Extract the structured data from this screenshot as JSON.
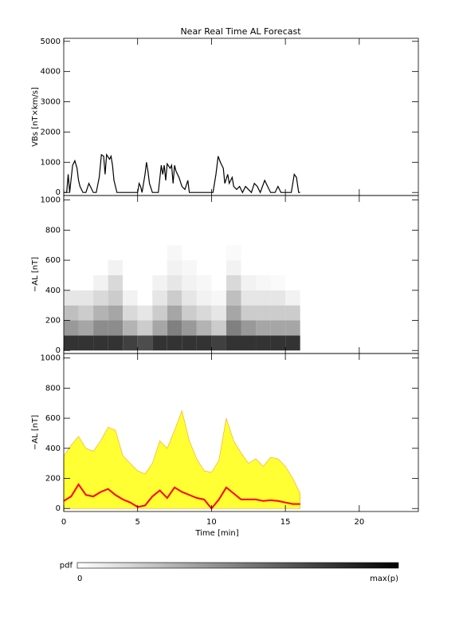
{
  "chart_data": [
    {
      "type": "line",
      "title": "Near Real Time AL Forecast",
      "ylabel": "VBs [nT×km/s]",
      "xlim": [
        0,
        24
      ],
      "xticks": [
        0,
        5,
        10,
        15,
        20
      ],
      "ylim": [
        -100,
        5100
      ],
      "yticks": [
        0,
        1000,
        2000,
        3000,
        4000,
        5000
      ],
      "series": [
        {
          "color": "#000000",
          "style": "line",
          "x": [
            0,
            0.2,
            0.3,
            0.4,
            0.6,
            0.75,
            0.9,
            1.0,
            1.1,
            1.3,
            1.5,
            1.7,
            1.8,
            2.0,
            2.2,
            2.4,
            2.55,
            2.7,
            2.8,
            2.9,
            3.1,
            3.2,
            3.3,
            3.4,
            3.5,
            3.6,
            5.0,
            5.1,
            5.2,
            5.3,
            5.5,
            5.6,
            5.7,
            5.8,
            6.0,
            6.4,
            6.6,
            6.7,
            6.8,
            6.9,
            7.0,
            7.2,
            7.3,
            7.4,
            7.5,
            7.6,
            7.8,
            8.0,
            8.2,
            8.4,
            8.5,
            10.1,
            10.3,
            10.45,
            10.6,
            10.8,
            10.9,
            11.1,
            11.2,
            11.4,
            11.5,
            11.7,
            11.9,
            12.1,
            12.3,
            12.5,
            12.7,
            12.9,
            13.1,
            13.3,
            13.6,
            13.8,
            14.0,
            14.3,
            14.5,
            14.7,
            15.4,
            15.6,
            15.75,
            15.9,
            16
          ],
          "values": [
            0,
            0,
            600,
            0,
            900,
            1050,
            800,
            400,
            200,
            0,
            0,
            300,
            200,
            0,
            0,
            500,
            1250,
            1200,
            600,
            1250,
            1100,
            1200,
            900,
            400,
            200,
            0,
            0,
            300,
            200,
            0,
            600,
            1000,
            700,
            300,
            0,
            0,
            900,
            600,
            900,
            400,
            950,
            800,
            900,
            300,
            900,
            700,
            500,
            200,
            100,
            400,
            0,
            0,
            600,
            1200,
            1000,
            800,
            300,
            600,
            300,
            500,
            200,
            100,
            200,
            0,
            200,
            100,
            0,
            300,
            200,
            0,
            400,
            200,
            0,
            0,
            200,
            0,
            0,
            600,
            500,
            0,
            0
          ]
        }
      ]
    },
    {
      "type": "heatmap",
      "ylabel": "−AL [nT]",
      "xlim": [
        0,
        24
      ],
      "xticks": [
        0,
        5,
        10,
        15,
        20
      ],
      "ylim": [
        -20,
        1030
      ],
      "yticks": [
        0,
        200,
        400,
        600,
        800,
        1000
      ],
      "x_bins": [
        0,
        1,
        2,
        3,
        4,
        5,
        6,
        7,
        8,
        9,
        10,
        11,
        12,
        13,
        14,
        15,
        16
      ],
      "y_bins": [
        0,
        100,
        200,
        300,
        400,
        500,
        600,
        700
      ],
      "z": [
        [
          0.8,
          0.4,
          0.25,
          0.1,
          0,
          0,
          0
        ],
        [
          0.8,
          0.35,
          0.2,
          0.1,
          0,
          0,
          0
        ],
        [
          0.8,
          0.45,
          0.3,
          0.15,
          0.05,
          0,
          0
        ],
        [
          0.8,
          0.45,
          0.35,
          0.2,
          0.15,
          0.05,
          0
        ],
        [
          0.75,
          0.3,
          0.15,
          0.05,
          0,
          0,
          0
        ],
        [
          0.7,
          0.2,
          0.1,
          0,
          0,
          0,
          0
        ],
        [
          0.8,
          0.35,
          0.2,
          0.1,
          0.05,
          0,
          0
        ],
        [
          0.8,
          0.5,
          0.35,
          0.2,
          0.1,
          0.05,
          0.03
        ],
        [
          0.8,
          0.4,
          0.2,
          0.1,
          0.05,
          0.03,
          0
        ],
        [
          0.8,
          0.3,
          0.15,
          0.05,
          0.03,
          0,
          0
        ],
        [
          0.75,
          0.2,
          0.1,
          0.03,
          0,
          0,
          0
        ],
        [
          0.8,
          0.5,
          0.35,
          0.25,
          0.15,
          0.05,
          0.02
        ],
        [
          0.8,
          0.4,
          0.2,
          0.1,
          0.05,
          0,
          0
        ],
        [
          0.8,
          0.35,
          0.2,
          0.1,
          0.03,
          0,
          0
        ],
        [
          0.8,
          0.35,
          0.2,
          0.1,
          0.02,
          0,
          0
        ],
        [
          0.8,
          0.35,
          0.2,
          0.05,
          0,
          0,
          0
        ]
      ],
      "colorbar": {
        "label": "pdf",
        "zlim": [
          0,
          1
        ],
        "ticks": [
          0,
          {
            "value": 1,
            "label": "max(p)"
          }
        ]
      }
    },
    {
      "type": "line",
      "ylabel": "−AL [nT]",
      "xlabel": "Time [min]",
      "xlim": [
        0,
        24
      ],
      "xticks": [
        0,
        5,
        10,
        15,
        20
      ],
      "ylim": [
        -20,
        1030
      ],
      "yticks": [
        0,
        200,
        400,
        600,
        800,
        1000
      ],
      "series": [
        {
          "color": "#ffff33",
          "style": "area",
          "x": [
            0,
            0.5,
            1,
            1.5,
            2,
            2.5,
            3,
            3.5,
            4,
            4.5,
            5,
            5.5,
            6,
            6.5,
            7,
            7.5,
            8,
            8.5,
            9,
            9.5,
            10,
            10.5,
            11,
            11.5,
            12,
            12.5,
            13,
            13.5,
            14,
            14.5,
            15,
            15.5,
            16
          ],
          "values": [
            350,
            420,
            480,
            400,
            380,
            450,
            540,
            520,
            350,
            300,
            250,
            230,
            300,
            450,
            400,
            520,
            650,
            450,
            330,
            250,
            240,
            320,
            600,
            450,
            370,
            300,
            330,
            280,
            340,
            330,
            280,
            200,
            100
          ]
        },
        {
          "color": "#ff0000",
          "style": "line",
          "x": [
            0,
            0.5,
            1,
            1.5,
            2,
            2.5,
            3,
            3.5,
            4,
            4.5,
            5,
            5.5,
            6,
            6.5,
            7,
            7.5,
            8,
            8.5,
            9,
            9.5,
            10,
            10.5,
            11,
            11.5,
            12,
            12.5,
            13,
            13.5,
            14,
            14.5,
            15,
            15.5,
            16
          ],
          "values": [
            50,
            80,
            160,
            90,
            80,
            110,
            130,
            90,
            60,
            40,
            10,
            20,
            80,
            120,
            70,
            140,
            110,
            90,
            70,
            60,
            0,
            60,
            140,
            100,
            60,
            60,
            60,
            50,
            55,
            50,
            40,
            30,
            30
          ]
        }
      ]
    }
  ]
}
